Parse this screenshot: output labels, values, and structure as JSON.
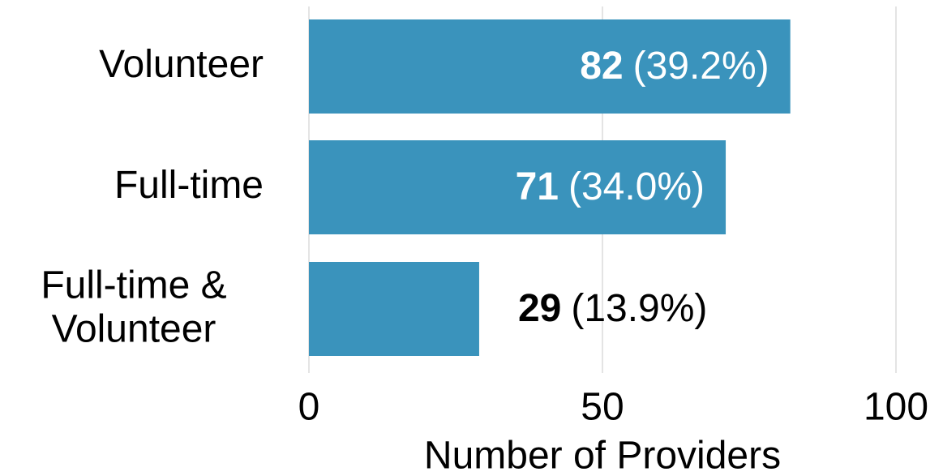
{
  "chart_data": {
    "type": "bar",
    "orientation": "horizontal",
    "categories": [
      "Volunteer",
      "Full-time",
      "Full-time & Volunteer"
    ],
    "values": [
      82,
      71,
      29
    ],
    "percent_labels": [
      "(39.2%)",
      "(34.0%)",
      "(13.9%)"
    ],
    "color": "#3a93bc",
    "xlim": [
      0,
      100
    ],
    "xticks": [
      0,
      50,
      100
    ],
    "grid": true,
    "xlabel": "Number of Providers"
  }
}
